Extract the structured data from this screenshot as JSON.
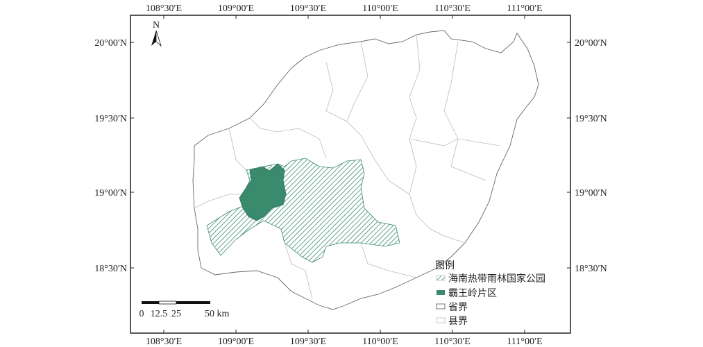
{
  "map": {
    "lon_labels": [
      "108°30′E",
      "109°00′E",
      "109°30′E",
      "110°00′E",
      "110°30′E",
      "111°00′E"
    ],
    "lat_labels": [
      "20°00′N",
      "19°30′N",
      "19°00′N",
      "18°30′N"
    ],
    "north_label": "N",
    "scale_bar": {
      "labels": [
        "0",
        "12.5",
        "25",
        "50 km"
      ]
    },
    "legend": {
      "title": "图例",
      "items": [
        {
          "label": "海南热带雨林国家公园",
          "symbol": "hatched",
          "color": "#3a8a6e"
        },
        {
          "label": "霸王岭片区",
          "symbol": "solid",
          "color": "#3a8a6e"
        },
        {
          "label": "省界",
          "symbol": "outline",
          "color": "#555555"
        },
        {
          "label": "县界",
          "symbol": "outline",
          "color": "#bbbbbb"
        }
      ]
    }
  }
}
